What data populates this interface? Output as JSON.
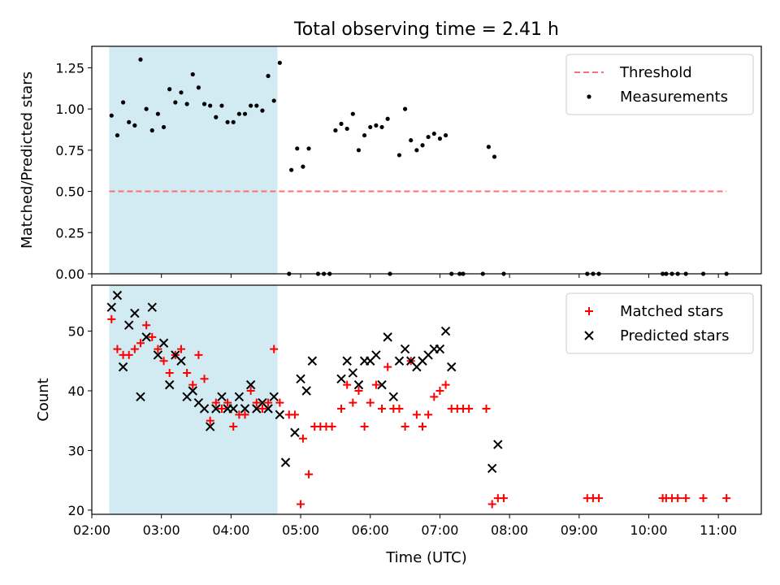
{
  "figure": {
    "title": "Total observing time = 2.41 h",
    "xlabel": "Time (UTC)"
  },
  "chart_data": [
    {
      "type": "scatter",
      "ylabel": "Matched/Predicted stars",
      "ylim": [
        0,
        1.38
      ],
      "xlim": [
        "02:00",
        "11:37"
      ],
      "y_ticks": [
        "0.00",
        "0.25",
        "0.50",
        "0.75",
        "1.00",
        "1.25"
      ],
      "x_ticks": [
        "02:00",
        "03:00",
        "04:00",
        "05:00",
        "06:00",
        "07:00",
        "08:00",
        "09:00",
        "10:00",
        "11:00"
      ],
      "grid": false,
      "legend_position": "top-right",
      "shaded_interval": {
        "start": "02:15",
        "end": "04:40",
        "color": "#add8e6"
      },
      "threshold": {
        "name": "Threshold",
        "y": 0.5,
        "x_start": "02:15",
        "x_end": "11:07",
        "color": "#ff6f6f"
      },
      "series": [
        {
          "name": "Measurements",
          "color": "#000000",
          "points": [
            [
              "02:17",
              0.96
            ],
            [
              "02:22",
              0.84
            ],
            [
              "02:27",
              1.04
            ],
            [
              "02:32",
              0.92
            ],
            [
              "02:37",
              0.9
            ],
            [
              "02:42",
              1.3
            ],
            [
              "02:47",
              1.0
            ],
            [
              "02:52",
              0.87
            ],
            [
              "02:57",
              0.97
            ],
            [
              "03:02",
              0.89
            ],
            [
              "03:07",
              1.12
            ],
            [
              "03:12",
              1.04
            ],
            [
              "03:17",
              1.1
            ],
            [
              "03:22",
              1.03
            ],
            [
              "03:27",
              1.21
            ],
            [
              "03:32",
              1.13
            ],
            [
              "03:37",
              1.03
            ],
            [
              "03:42",
              1.02
            ],
            [
              "03:47",
              0.95
            ],
            [
              "03:52",
              1.02
            ],
            [
              "03:57",
              0.92
            ],
            [
              "04:02",
              0.92
            ],
            [
              "04:07",
              0.97
            ],
            [
              "04:12",
              0.97
            ],
            [
              "04:17",
              1.02
            ],
            [
              "04:22",
              1.02
            ],
            [
              "04:27",
              0.99
            ],
            [
              "04:32",
              1.2
            ],
            [
              "04:37",
              1.05
            ],
            [
              "04:42",
              1.28
            ],
            [
              "04:50",
              0.0
            ],
            [
              "04:52",
              0.63
            ],
            [
              "04:57",
              0.76
            ],
            [
              "05:02",
              0.65
            ],
            [
              "05:07",
              0.76
            ],
            [
              "05:15",
              0.0
            ],
            [
              "05:20",
              0.0
            ],
            [
              "05:25",
              0.0
            ],
            [
              "05:30",
              0.87
            ],
            [
              "05:35",
              0.91
            ],
            [
              "05:40",
              0.88
            ],
            [
              "05:45",
              0.97
            ],
            [
              "05:50",
              0.75
            ],
            [
              "05:55",
              0.84
            ],
            [
              "06:00",
              0.89
            ],
            [
              "06:05",
              0.9
            ],
            [
              "06:10",
              0.89
            ],
            [
              "06:15",
              0.94
            ],
            [
              "06:17",
              0.0
            ],
            [
              "06:25",
              0.72
            ],
            [
              "06:30",
              1.0
            ],
            [
              "06:35",
              0.81
            ],
            [
              "06:40",
              0.75
            ],
            [
              "06:45",
              0.78
            ],
            [
              "06:50",
              0.83
            ],
            [
              "06:55",
              0.85
            ],
            [
              "07:00",
              0.82
            ],
            [
              "07:05",
              0.84
            ],
            [
              "07:10",
              0.0
            ],
            [
              "07:17",
              0.0
            ],
            [
              "07:20",
              0.0
            ],
            [
              "07:37",
              0.0
            ],
            [
              "07:42",
              0.77
            ],
            [
              "07:47",
              0.71
            ],
            [
              "07:55",
              0.0
            ],
            [
              "09:07",
              0.0
            ],
            [
              "09:12",
              0.0
            ],
            [
              "09:17",
              0.0
            ],
            [
              "10:12",
              0.0
            ],
            [
              "10:15",
              0.0
            ],
            [
              "10:20",
              0.0
            ],
            [
              "10:25",
              0.0
            ],
            [
              "10:32",
              0.0
            ],
            [
              "10:47",
              0.0
            ],
            [
              "11:07",
              0.0
            ]
          ]
        }
      ]
    },
    {
      "type": "scatter",
      "ylabel": "Count",
      "ylim": [
        19.3,
        57.7
      ],
      "xlim": [
        "02:00",
        "11:37"
      ],
      "y_ticks": [
        "20",
        "30",
        "40",
        "50"
      ],
      "x_ticks": [
        "02:00",
        "03:00",
        "04:00",
        "05:00",
        "06:00",
        "07:00",
        "08:00",
        "09:00",
        "10:00",
        "11:00"
      ],
      "grid": false,
      "legend_position": "top-right",
      "shaded_interval": {
        "start": "02:15",
        "end": "04:40",
        "color": "#add8e6"
      },
      "series": [
        {
          "name": "Matched stars",
          "color": "#ff0000",
          "marker": "plus",
          "points": [
            [
              "02:17",
              52
            ],
            [
              "02:22",
              47
            ],
            [
              "02:27",
              46
            ],
            [
              "02:32",
              46
            ],
            [
              "02:37",
              47
            ],
            [
              "02:42",
              48
            ],
            [
              "02:47",
              51
            ],
            [
              "02:52",
              49
            ],
            [
              "02:57",
              47
            ],
            [
              "03:02",
              45
            ],
            [
              "03:07",
              43
            ],
            [
              "03:12",
              46
            ],
            [
              "03:17",
              47
            ],
            [
              "03:22",
              43
            ],
            [
              "03:27",
              41
            ],
            [
              "03:32",
              46
            ],
            [
              "03:37",
              42
            ],
            [
              "03:42",
              35
            ],
            [
              "03:47",
              38
            ],
            [
              "03:52",
              37
            ],
            [
              "03:57",
              38
            ],
            [
              "04:02",
              34
            ],
            [
              "04:07",
              36
            ],
            [
              "04:12",
              36
            ],
            [
              "04:17",
              40
            ],
            [
              "04:22",
              38
            ],
            [
              "04:27",
              37
            ],
            [
              "04:32",
              38
            ],
            [
              "04:37",
              47
            ],
            [
              "04:42",
              38
            ],
            [
              "04:50",
              36
            ],
            [
              "04:55",
              36
            ],
            [
              "05:00",
              21
            ],
            [
              "05:02",
              32
            ],
            [
              "05:07",
              26
            ],
            [
              "05:12",
              34
            ],
            [
              "05:17",
              34
            ],
            [
              "05:22",
              34
            ],
            [
              "05:27",
              34
            ],
            [
              "05:35",
              37
            ],
            [
              "05:40",
              41
            ],
            [
              "05:45",
              38
            ],
            [
              "05:50",
              40
            ],
            [
              "05:55",
              34
            ],
            [
              "06:00",
              38
            ],
            [
              "06:05",
              41
            ],
            [
              "06:10",
              37
            ],
            [
              "06:15",
              44
            ],
            [
              "06:20",
              37
            ],
            [
              "06:25",
              37
            ],
            [
              "06:30",
              34
            ],
            [
              "06:35",
              45
            ],
            [
              "06:40",
              36
            ],
            [
              "06:45",
              34
            ],
            [
              "06:50",
              36
            ],
            [
              "06:55",
              39
            ],
            [
              "07:00",
              40
            ],
            [
              "07:05",
              41
            ],
            [
              "07:10",
              37
            ],
            [
              "07:15",
              37
            ],
            [
              "07:20",
              37
            ],
            [
              "07:25",
              37
            ],
            [
              "07:40",
              37
            ],
            [
              "07:45",
              21
            ],
            [
              "07:50",
              22
            ],
            [
              "07:55",
              22
            ],
            [
              "09:07",
              22
            ],
            [
              "09:12",
              22
            ],
            [
              "09:17",
              22
            ],
            [
              "10:12",
              22
            ],
            [
              "10:15",
              22
            ],
            [
              "10:20",
              22
            ],
            [
              "10:25",
              22
            ],
            [
              "10:32",
              22
            ],
            [
              "10:47",
              22
            ],
            [
              "11:07",
              22
            ]
          ]
        },
        {
          "name": "Predicted stars",
          "color": "#000000",
          "marker": "x",
          "points": [
            [
              "02:17",
              54
            ],
            [
              "02:22",
              56
            ],
            [
              "02:27",
              44
            ],
            [
              "02:32",
              51
            ],
            [
              "02:37",
              53
            ],
            [
              "02:42",
              39
            ],
            [
              "02:47",
              49
            ],
            [
              "02:52",
              54
            ],
            [
              "02:57",
              46
            ],
            [
              "03:02",
              48
            ],
            [
              "03:07",
              41
            ],
            [
              "03:12",
              46
            ],
            [
              "03:17",
              45
            ],
            [
              "03:22",
              39
            ],
            [
              "03:27",
              40
            ],
            [
              "03:32",
              38
            ],
            [
              "03:37",
              37
            ],
            [
              "03:42",
              34
            ],
            [
              "03:47",
              37
            ],
            [
              "03:52",
              39
            ],
            [
              "03:57",
              37
            ],
            [
              "04:02",
              37
            ],
            [
              "04:07",
              39
            ],
            [
              "04:12",
              37
            ],
            [
              "04:17",
              41
            ],
            [
              "04:22",
              37
            ],
            [
              "04:27",
              38
            ],
            [
              "04:32",
              37
            ],
            [
              "04:37",
              39
            ],
            [
              "04:42",
              36
            ],
            [
              "04:47",
              28
            ],
            [
              "04:55",
              33
            ],
            [
              "05:00",
              42
            ],
            [
              "05:05",
              40
            ],
            [
              "05:10",
              45
            ],
            [
              "05:35",
              42
            ],
            [
              "05:40",
              45
            ],
            [
              "05:45",
              43
            ],
            [
              "05:50",
              41
            ],
            [
              "05:55",
              45
            ],
            [
              "06:00",
              45
            ],
            [
              "06:05",
              46
            ],
            [
              "06:10",
              41
            ],
            [
              "06:15",
              49
            ],
            [
              "06:20",
              39
            ],
            [
              "06:25",
              45
            ],
            [
              "06:30",
              47
            ],
            [
              "06:35",
              45
            ],
            [
              "06:40",
              44
            ],
            [
              "06:45",
              45
            ],
            [
              "06:50",
              46
            ],
            [
              "06:55",
              47
            ],
            [
              "07:00",
              47
            ],
            [
              "07:05",
              50
            ],
            [
              "07:10",
              44
            ],
            [
              "07:45",
              27
            ],
            [
              "07:50",
              31
            ]
          ]
        }
      ]
    }
  ]
}
